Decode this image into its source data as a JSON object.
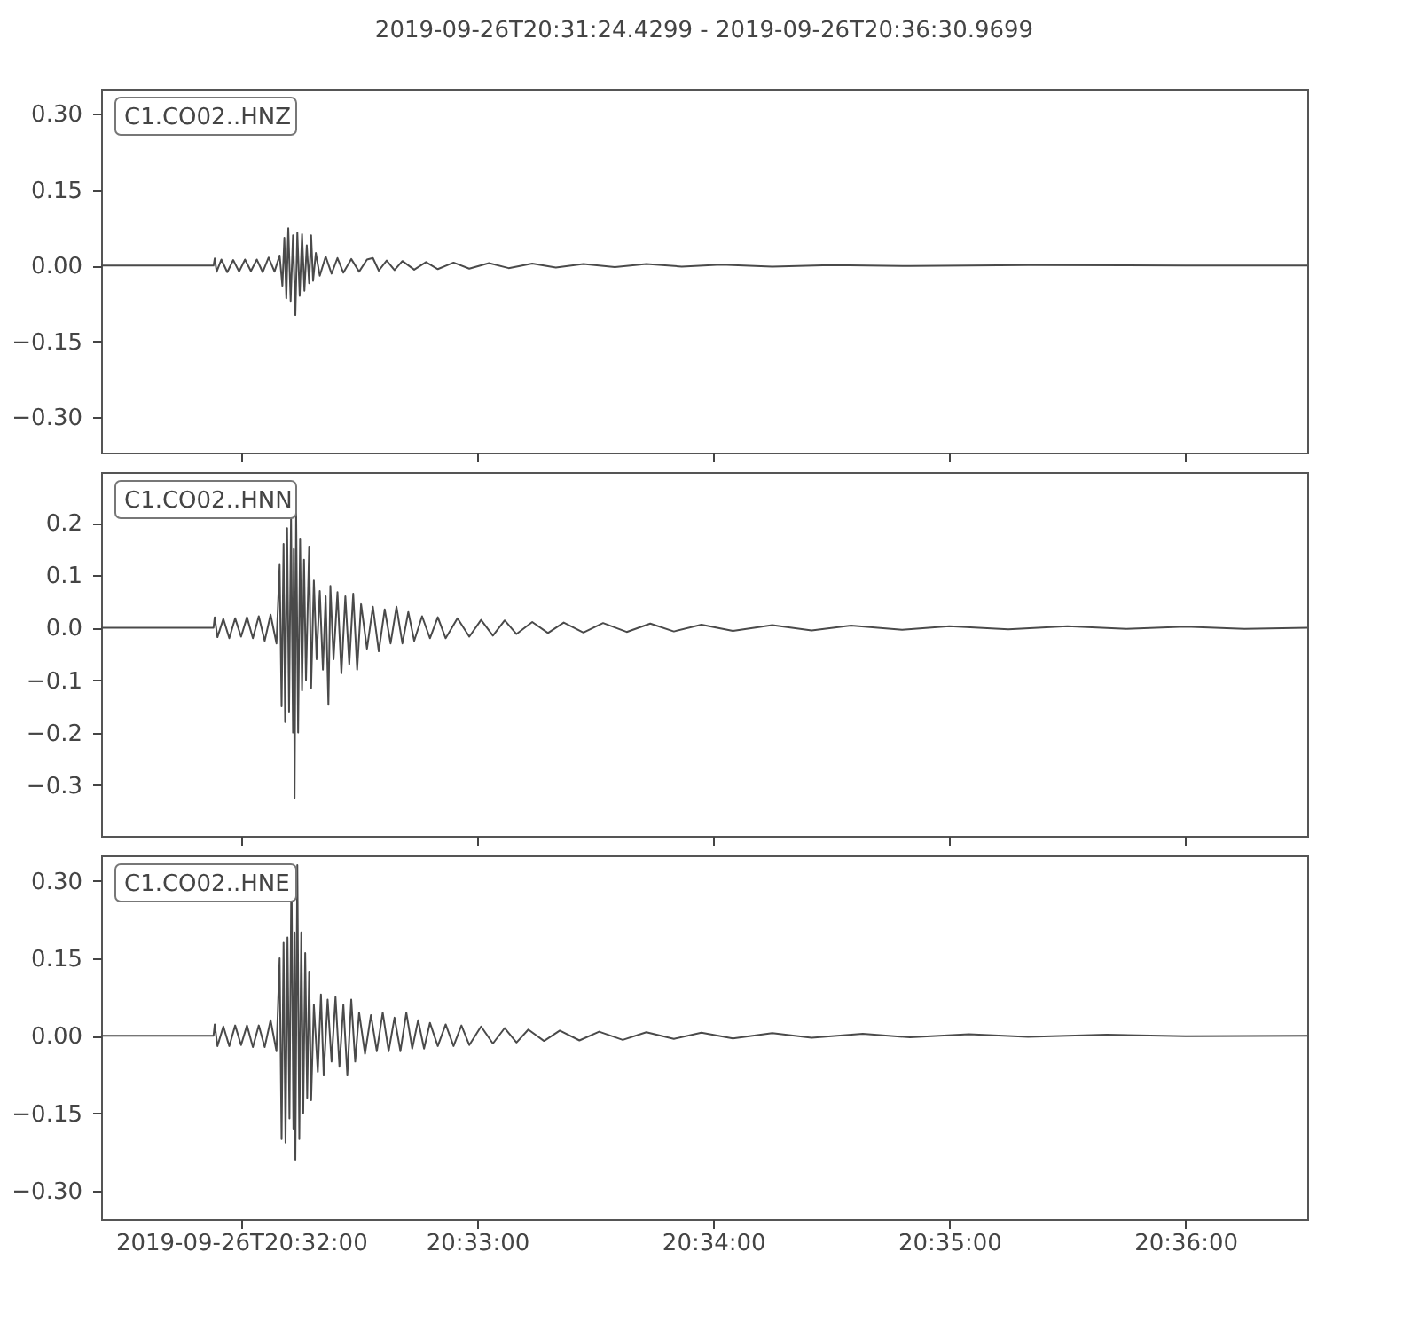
{
  "chart_data": [
    {
      "type": "line",
      "title": "2019-09-26T20:31:24.4299  -  2019-09-26T20:36:30.9699",
      "tick_labels": "y",
      "grid": false,
      "marker": "none",
      "line_style": "solid",
      "xlim": [
        "2019-09-26T20:31:24.4299",
        "2019-09-26T20:36:30.9699"
      ],
      "xticks": [
        {
          "value": "2019-09-26T20:32:00",
          "label": null
        },
        {
          "value": "2019-09-26T20:33:00",
          "label": null
        },
        {
          "value": "2019-09-26T20:34:00",
          "label": null
        },
        {
          "value": "2019-09-26T20:35:00",
          "label": null
        },
        {
          "value": "2019-09-26T20:36:00",
          "label": null
        }
      ],
      "ylim": [
        -0.37,
        0.35
      ],
      "yticks": [
        {
          "value": -0.3,
          "label": "−0.30"
        },
        {
          "value": -0.15,
          "label": "−0.15"
        },
        {
          "value": 0,
          "label": "0.00"
        },
        {
          "value": 0.15,
          "label": "0.15"
        },
        {
          "value": 0.3,
          "label": "0.30"
        }
      ],
      "series": [
        {
          "name": "C1.CO02..HNZ",
          "color": "#4a4a4a",
          "x": [
            "2019-09-26T20:31:24.43",
            "2019-09-26T20:31:53.0",
            "2019-09-26T20:31:53.3",
            "2019-09-26T20:31:53.8",
            "2019-09-26T20:31:55.0",
            "2019-09-26T20:31:56.5",
            "2019-09-26T20:31:58.0",
            "2019-09-26T20:31:59.5",
            "2019-09-26T20:32:01.0",
            "2019-09-26T20:32:02.5",
            "2019-09-26T20:32:04.0",
            "2019-09-26T20:32:05.5",
            "2019-09-26T20:32:07.0",
            "2019-09-26T20:32:08.5",
            "2019-09-26T20:32:09.8",
            "2019-09-26T20:32:10.5",
            "2019-09-26T20:32:11.0",
            "2019-09-26T20:32:11.5",
            "2019-09-26T20:32:12.0",
            "2019-09-26T20:32:12.6",
            "2019-09-26T20:32:13.2",
            "2019-09-26T20:32:13.8",
            "2019-09-26T20:32:14.3",
            "2019-09-26T20:32:14.9",
            "2019-09-26T20:32:15.5",
            "2019-09-26T20:32:16.1",
            "2019-09-26T20:32:16.7",
            "2019-09-26T20:32:17.3",
            "2019-09-26T20:32:17.8",
            "2019-09-26T20:32:18.3",
            "2019-09-26T20:32:19.0",
            "2019-09-26T20:32:20.0",
            "2019-09-26T20:32:21.5",
            "2019-09-26T20:32:23.0",
            "2019-09-26T20:32:24.5",
            "2019-09-26T20:32:26.0",
            "2019-09-26T20:32:28.0",
            "2019-09-26T20:32:30.0",
            "2019-09-26T20:32:32.0",
            "2019-09-26T20:32:33.5",
            "2019-09-26T20:32:35.0",
            "2019-09-26T20:32:37.0",
            "2019-09-26T20:32:39.0",
            "2019-09-26T20:32:41.0",
            "2019-09-26T20:32:44.0",
            "2019-09-26T20:32:47.0",
            "2019-09-26T20:32:50.0",
            "2019-09-26T20:32:54.0",
            "2019-09-26T20:32:58.0",
            "2019-09-26T20:33:03.0",
            "2019-09-26T20:33:08.0",
            "2019-09-26T20:33:14.0",
            "2019-09-26T20:33:20.0",
            "2019-09-26T20:33:27.0",
            "2019-09-26T20:33:35.0",
            "2019-09-26T20:33:43.0",
            "2019-09-26T20:33:52.0",
            "2019-09-26T20:34:02.0",
            "2019-09-26T20:34:15.0",
            "2019-09-26T20:34:30.0",
            "2019-09-26T20:34:50.0",
            "2019-09-26T20:35:20.0",
            "2019-09-26T20:36:00.0",
            "2019-09-26T20:36:30.97"
          ],
          "values": [
            0,
            0,
            0.014,
            -0.012,
            0.012,
            -0.013,
            0.011,
            -0.012,
            0.012,
            -0.011,
            0.012,
            -0.013,
            0.016,
            -0.012,
            0.02,
            -0.04,
            0.055,
            -0.065,
            0.074,
            -0.07,
            0.06,
            -0.098,
            0.065,
            -0.06,
            0.062,
            -0.05,
            0.04,
            -0.035,
            0.06,
            -0.03,
            0.025,
            -0.02,
            0.018,
            -0.016,
            0.015,
            -0.014,
            0.013,
            -0.012,
            0.012,
            0.015,
            -0.01,
            0.01,
            -0.009,
            0.009,
            -0.008,
            0.007,
            -0.007,
            0.006,
            -0.006,
            0.005,
            -0.005,
            0.004,
            -0.004,
            0.003,
            -0.003,
            0.003,
            -0.002,
            0.002,
            -0.002,
            0.001,
            -0.001,
            0.001,
            0,
            0
          ]
        }
      ]
    },
    {
      "type": "line",
      "tick_labels": "y",
      "grid": false,
      "marker": "none",
      "line_style": "solid",
      "xlim": [
        "2019-09-26T20:31:24.4299",
        "2019-09-26T20:36:30.9699"
      ],
      "xticks": [
        {
          "value": "2019-09-26T20:32:00",
          "label": null
        },
        {
          "value": "2019-09-26T20:33:00",
          "label": null
        },
        {
          "value": "2019-09-26T20:34:00",
          "label": null
        },
        {
          "value": "2019-09-26T20:35:00",
          "label": null
        },
        {
          "value": "2019-09-26T20:36:00",
          "label": null
        }
      ],
      "ylim": [
        -0.397,
        0.297
      ],
      "yticks": [
        {
          "value": -0.3,
          "label": "−0.3"
        },
        {
          "value": -0.2,
          "label": "−0.2"
        },
        {
          "value": -0.1,
          "label": "−0.1"
        },
        {
          "value": 0,
          "label": "0.0"
        },
        {
          "value": 0.1,
          "label": "0.1"
        },
        {
          "value": 0.2,
          "label": "0.2"
        }
      ],
      "series": [
        {
          "name": "C1.CO02..HNN",
          "color": "#4a4a4a",
          "x": [
            "2019-09-26T20:31:24.43",
            "2019-09-26T20:31:53.0",
            "2019-09-26T20:31:53.3",
            "2019-09-26T20:31:54.0",
            "2019-09-26T20:31:55.5",
            "2019-09-26T20:31:57.0",
            "2019-09-26T20:31:58.5",
            "2019-09-26T20:32:00.0",
            "2019-09-26T20:32:01.5",
            "2019-09-26T20:32:03.0",
            "2019-09-26T20:32:04.5",
            "2019-09-26T20:32:06.0",
            "2019-09-26T20:32:07.5",
            "2019-09-26T20:32:09.0",
            "2019-09-26T20:32:09.8",
            "2019-09-26T20:32:10.3",
            "2019-09-26T20:32:10.8",
            "2019-09-26T20:32:11.2",
            "2019-09-26T20:32:11.7",
            "2019-09-26T20:32:12.2",
            "2019-09-26T20:32:12.7",
            "2019-09-26T20:32:13.2",
            "2019-09-26T20:32:13.4",
            "2019-09-26T20:32:13.6",
            "2019-09-26T20:32:14.0",
            "2019-09-26T20:32:14.5",
            "2019-09-26T20:32:15.0",
            "2019-09-26T20:32:15.5",
            "2019-09-26T20:32:16.0",
            "2019-09-26T20:32:16.5",
            "2019-09-26T20:32:17.3",
            "2019-09-26T20:32:17.8",
            "2019-09-26T20:32:18.5",
            "2019-09-26T20:32:19.2",
            "2019-09-26T20:32:20.0",
            "2019-09-26T20:32:20.8",
            "2019-09-26T20:32:21.5",
            "2019-09-26T20:32:22.2",
            "2019-09-26T20:32:22.7",
            "2019-09-26T20:32:23.5",
            "2019-09-26T20:32:24.5",
            "2019-09-26T20:32:25.5",
            "2019-09-26T20:32:26.5",
            "2019-09-26T20:32:27.5",
            "2019-09-26T20:32:28.5",
            "2019-09-26T20:32:29.5",
            "2019-09-26T20:32:30.5",
            "2019-09-26T20:32:32.0",
            "2019-09-26T20:32:33.5",
            "2019-09-26T20:32:35.0",
            "2019-09-26T20:32:36.5",
            "2019-09-26T20:32:38.0",
            "2019-09-26T20:32:39.5",
            "2019-09-26T20:32:41.0",
            "2019-09-26T20:32:42.5",
            "2019-09-26T20:32:44.0",
            "2019-09-26T20:32:46.0",
            "2019-09-26T20:32:48.0",
            "2019-09-26T20:32:50.0",
            "2019-09-26T20:32:52.0",
            "2019-09-26T20:32:55.0",
            "2019-09-26T20:32:58.0",
            "2019-09-26T20:33:01.0",
            "2019-09-26T20:33:04.0",
            "2019-09-26T20:33:07.0",
            "2019-09-26T20:33:10.0",
            "2019-09-26T20:33:14.0",
            "2019-09-26T20:33:18.0",
            "2019-09-26T20:33:22.0",
            "2019-09-26T20:33:27.0",
            "2019-09-26T20:33:32.0",
            "2019-09-26T20:33:38.0",
            "2019-09-26T20:33:44.0",
            "2019-09-26T20:33:50.0",
            "2019-09-26T20:33:57.0",
            "2019-09-26T20:34:05.0",
            "2019-09-26T20:34:15.0",
            "2019-09-26T20:34:25.0",
            "2019-09-26T20:34:35.0",
            "2019-09-26T20:34:48.0",
            "2019-09-26T20:35:00.0",
            "2019-09-26T20:35:15.0",
            "2019-09-26T20:35:30.0",
            "2019-09-26T20:35:45.0",
            "2019-09-26T20:36:00.0",
            "2019-09-26T20:36:15.0",
            "2019-09-26T20:36:30.97"
          ],
          "values": [
            0,
            0,
            0.02,
            -0.018,
            0.017,
            -0.02,
            0.018,
            -0.017,
            0.02,
            -0.02,
            0.022,
            -0.025,
            0.025,
            -0.03,
            0.12,
            -0.15,
            0.16,
            -0.18,
            0.19,
            -0.16,
            0.21,
            -0.2,
            0.15,
            -0.325,
            0.22,
            -0.2,
            0.17,
            -0.12,
            0.13,
            -0.1,
            0.155,
            -0.115,
            0.09,
            -0.06,
            0.07,
            -0.08,
            0.06,
            -0.147,
            0.08,
            -0.06,
            0.068,
            -0.087,
            0.06,
            -0.07,
            0.065,
            -0.08,
            0.045,
            -0.04,
            0.04,
            -0.045,
            0.035,
            -0.03,
            0.04,
            -0.03,
            0.03,
            -0.025,
            0.022,
            -0.02,
            0.02,
            -0.02,
            0.018,
            -0.017,
            0.015,
            -0.015,
            0.014,
            -0.012,
            0.011,
            -0.01,
            0.01,
            -0.009,
            0.009,
            -0.008,
            0.008,
            -0.007,
            0.006,
            -0.006,
            0.005,
            -0.005,
            0.004,
            -0.004,
            0.003,
            -0.003,
            0.003,
            -0.002,
            0.002,
            -0.002,
            0
          ]
        }
      ]
    },
    {
      "type": "line",
      "grid": false,
      "marker": "none",
      "line_style": "solid",
      "xlim": [
        "2019-09-26T20:31:24.4299",
        "2019-09-26T20:36:30.9699"
      ],
      "xticks": [
        {
          "value": "2019-09-26T20:32:00",
          "label": "2019-09-26T20:32:00"
        },
        {
          "value": "2019-09-26T20:33:00",
          "label": "20:33:00"
        },
        {
          "value": "2019-09-26T20:34:00",
          "label": "20:34:00"
        },
        {
          "value": "2019-09-26T20:35:00",
          "label": "20:35:00"
        },
        {
          "value": "2019-09-26T20:36:00",
          "label": "20:36:00"
        }
      ],
      "ylim": [
        -0.355,
        0.349
      ],
      "yticks": [
        {
          "value": -0.3,
          "label": "−0.30"
        },
        {
          "value": -0.15,
          "label": "−0.15"
        },
        {
          "value": 0,
          "label": "0.00"
        },
        {
          "value": 0.15,
          "label": "0.15"
        },
        {
          "value": 0.3,
          "label": "0.30"
        }
      ],
      "series": [
        {
          "name": "C1.CO02..HNE",
          "color": "#4a4a4a",
          "x": [
            "2019-09-26T20:31:24.43",
            "2019-09-26T20:31:53.0",
            "2019-09-26T20:31:53.3",
            "2019-09-26T20:31:54.0",
            "2019-09-26T20:31:55.5",
            "2019-09-26T20:31:57.0",
            "2019-09-26T20:31:58.5",
            "2019-09-26T20:32:00.0",
            "2019-09-26T20:32:01.5",
            "2019-09-26T20:32:03.0",
            "2019-09-26T20:32:04.5",
            "2019-09-26T20:32:06.0",
            "2019-09-26T20:32:07.5",
            "2019-09-26T20:32:09.0",
            "2019-09-26T20:32:09.8",
            "2019-09-26T20:32:10.3",
            "2019-09-26T20:32:10.8",
            "2019-09-26T20:32:11.3",
            "2019-09-26T20:32:11.8",
            "2019-09-26T20:32:12.3",
            "2019-09-26T20:32:12.8",
            "2019-09-26T20:32:13.3",
            "2019-09-26T20:32:13.6",
            "2019-09-26T20:32:13.8",
            "2019-09-26T20:32:14.3",
            "2019-09-26T20:32:14.8",
            "2019-09-26T20:32:15.3",
            "2019-09-26T20:32:15.8",
            "2019-09-26T20:32:16.3",
            "2019-09-26T20:32:16.8",
            "2019-09-26T20:32:17.3",
            "2019-09-26T20:32:17.8",
            "2019-09-26T20:32:18.5",
            "2019-09-26T20:32:19.5",
            "2019-09-26T20:32:20.3",
            "2019-09-26T20:32:21.0",
            "2019-09-26T20:32:22.0",
            "2019-09-26T20:32:23.0",
            "2019-09-26T20:32:24.0",
            "2019-09-26T20:32:25.0",
            "2019-09-26T20:32:26.0",
            "2019-09-26T20:32:27.0",
            "2019-09-26T20:32:28.0",
            "2019-09-26T20:32:29.0",
            "2019-09-26T20:32:30.0",
            "2019-09-26T20:32:31.5",
            "2019-09-26T20:32:33.0",
            "2019-09-26T20:32:34.5",
            "2019-09-26T20:32:36.0",
            "2019-09-26T20:32:37.5",
            "2019-09-26T20:32:39.0",
            "2019-09-26T20:32:40.5",
            "2019-09-26T20:32:42.0",
            "2019-09-26T20:32:43.5",
            "2019-09-26T20:32:45.0",
            "2019-09-26T20:32:46.5",
            "2019-09-26T20:32:48.0",
            "2019-09-26T20:32:50.0",
            "2019-09-26T20:32:52.0",
            "2019-09-26T20:32:54.0",
            "2019-09-26T20:32:56.0",
            "2019-09-26T20:32:58.0",
            "2019-09-26T20:33:01.0",
            "2019-09-26T20:33:04.0",
            "2019-09-26T20:33:07.0",
            "2019-09-26T20:33:10.0",
            "2019-09-26T20:33:13.0",
            "2019-09-26T20:33:17.0",
            "2019-09-26T20:33:21.0",
            "2019-09-26T20:33:26.0",
            "2019-09-26T20:33:31.0",
            "2019-09-26T20:33:37.0",
            "2019-09-26T20:33:43.0",
            "2019-09-26T20:33:50.0",
            "2019-09-26T20:33:57.0",
            "2019-09-26T20:34:05.0",
            "2019-09-26T20:34:15.0",
            "2019-09-26T20:34:25.0",
            "2019-09-26T20:34:38.0",
            "2019-09-26T20:34:50.0",
            "2019-09-26T20:35:05.0",
            "2019-09-26T20:35:20.0",
            "2019-09-26T20:35:40.0",
            "2019-09-26T20:36:00.0",
            "2019-09-26T20:36:30.97"
          ],
          "values": [
            0,
            0,
            0.022,
            -0.02,
            0.018,
            -0.02,
            0.02,
            -0.018,
            0.02,
            -0.022,
            0.02,
            -0.022,
            0.03,
            -0.03,
            0.15,
            -0.2,
            0.18,
            -0.207,
            0.19,
            -0.16,
            0.33,
            -0.18,
            0.2,
            -0.24,
            0.33,
            -0.2,
            0.2,
            -0.15,
            0.16,
            -0.12,
            0.124,
            -0.125,
            0.06,
            -0.07,
            0.08,
            -0.077,
            0.07,
            -0.05,
            0.075,
            -0.06,
            0.06,
            -0.077,
            0.07,
            -0.05,
            0.045,
            -0.035,
            0.04,
            -0.03,
            0.045,
            -0.03,
            0.035,
            -0.03,
            0.045,
            -0.025,
            0.03,
            -0.025,
            0.025,
            -0.02,
            0.022,
            -0.02,
            0.02,
            -0.018,
            0.018,
            -0.015,
            0.015,
            -0.013,
            0.012,
            -0.01,
            0.01,
            -0.009,
            0.008,
            -0.008,
            0.007,
            -0.006,
            0.006,
            -0.005,
            0.005,
            -0.004,
            0.004,
            -0.003,
            0.003,
            -0.002,
            0.002,
            -0.001,
            0
          ]
        }
      ]
    }
  ]
}
